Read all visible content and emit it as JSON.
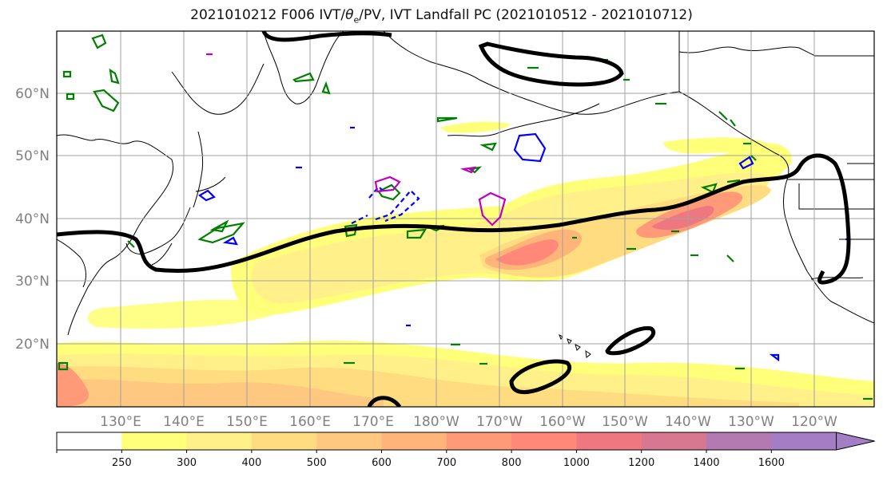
{
  "title": {
    "text_before": "2021010212 F006 IVT/",
    "theta": "θ",
    "theta_sub": "e",
    "text_after": "/PV, IVT Landfall PC (2021010512 - 2021010712)"
  },
  "lat_labels": [
    "60°N",
    "50°N",
    "40°N",
    "30°N",
    "20°N"
  ],
  "lon_labels": [
    "130°E",
    "140°E",
    "150°E",
    "160°E",
    "170°E",
    "180°W",
    "170°W",
    "160°W",
    "150°W",
    "140°W",
    "130°W",
    "120°W"
  ],
  "colorbar": {
    "ticks": [
      "250",
      "300",
      "400",
      "500",
      "600",
      "700",
      "800",
      "1000",
      "1200",
      "1400",
      "1600"
    ],
    "colors": [
      "#ffffff",
      "#ffff7a",
      "#fff08a",
      "#ffdc80",
      "#ffc880",
      "#ffb47a",
      "#ff9a78",
      "#ff8878",
      "#ef7880",
      "#d87890",
      "#b27ab0",
      "#a47ec4"
    ]
  },
  "colors": {
    "pv_contour": "#008000",
    "theta_contour_blue": "#0000ff",
    "theta_contour_magenta": "#c000c0",
    "landfall_pc": "#000000",
    "gridline": "#a0a0a0"
  }
}
